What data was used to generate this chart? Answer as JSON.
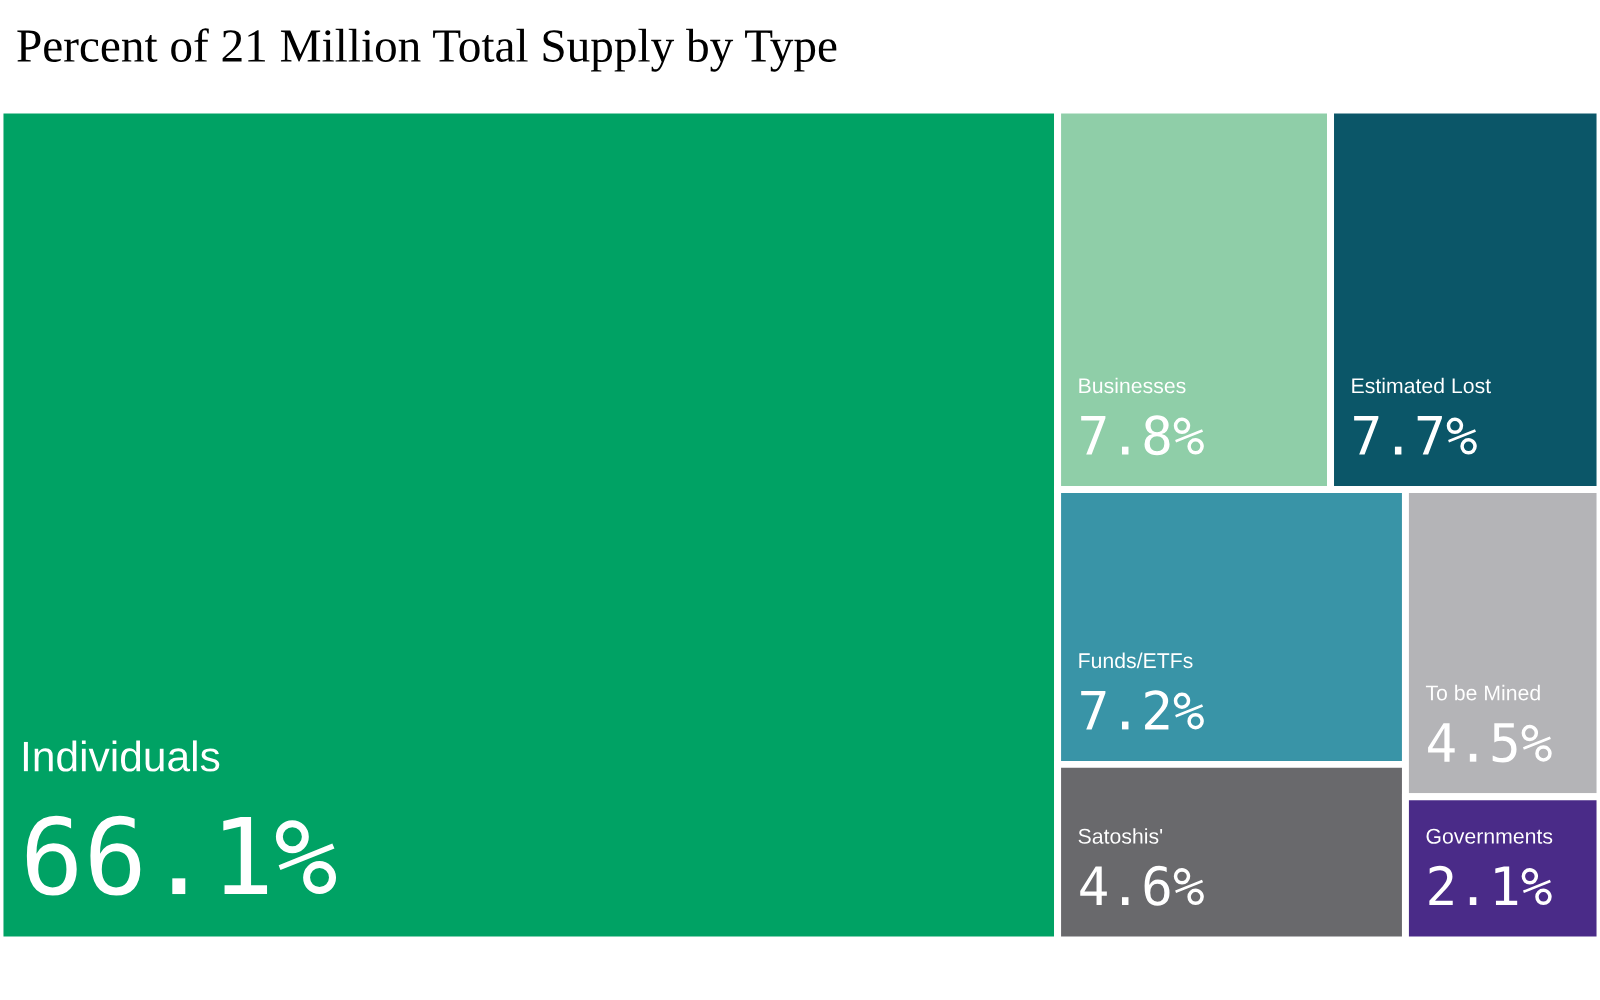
{
  "chart_data": {
    "type": "other",
    "title": "Percent of 21 Million Total Supply by Type",
    "categories": [
      "Individuals",
      "Businesses",
      "Estimated Lost",
      "Funds/ETFs",
      "Satoshis'",
      "To be Mined",
      "Governments"
    ],
    "values": [
      66.1,
      7.8,
      7.7,
      7.2,
      4.6,
      4.5,
      2.1
    ],
    "value_labels": [
      "66.1%",
      "7.8%",
      "7.7%",
      "7.2%",
      "4.6%",
      "4.5%",
      "2.1%"
    ],
    "colors": [
      "#00a264",
      "#8fcea8",
      "#0b5668",
      "#3994a7",
      "#69696c",
      "#b4b4b7",
      "#4a2b88"
    ]
  }
}
